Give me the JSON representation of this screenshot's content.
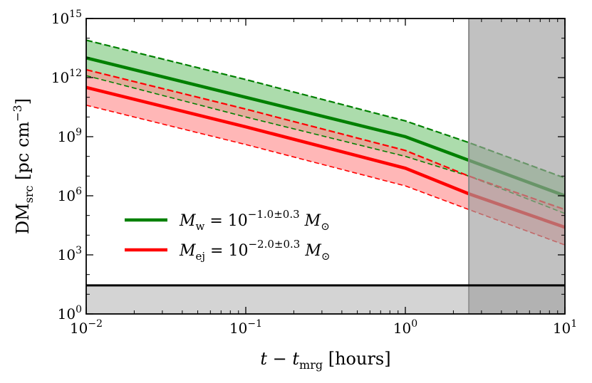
{
  "chart_data": {
    "type": "line",
    "title": "",
    "xlabel": "t − t_mrg [hours]",
    "ylabel": "DM_src [pc cm^−3]",
    "xscale": "log",
    "yscale": "log",
    "xlim": [
      0.01,
      10
    ],
    "ylim_log10": [
      0,
      15
    ],
    "x_ticks": [
      {
        "value": 0.01,
        "base": "10",
        "exp": "−2"
      },
      {
        "value": 0.1,
        "base": "10",
        "exp": "−1"
      },
      {
        "value": 1,
        "base": "10",
        "exp": "0"
      },
      {
        "value": 10,
        "base": "10",
        "exp": "1"
      }
    ],
    "y_ticks": [
      {
        "log10": 0,
        "base": "10",
        "exp": "0"
      },
      {
        "log10": 3,
        "base": "10",
        "exp": "3"
      },
      {
        "log10": 6,
        "base": "10",
        "exp": "6"
      },
      {
        "log10": 9,
        "base": "10",
        "exp": "9"
      },
      {
        "log10": 12,
        "base": "10",
        "exp": "12"
      },
      {
        "log10": 15,
        "base": "10",
        "exp": "15"
      }
    ],
    "series": [
      {
        "name": "M_w = 10^(−1.0±0.3) M_⊙",
        "color": "#008000",
        "band_color": "#7fc97f",
        "x": [
          0.01,
          0.1,
          1,
          2.5,
          10
        ],
        "log10_y_center": [
          13.0,
          11.0,
          9.0,
          7.8,
          6.0
        ],
        "log10_y_upper": [
          13.9,
          11.9,
          9.8,
          8.7,
          6.9
        ],
        "log10_y_lower": [
          12.1,
          10.0,
          8.0,
          7.0,
          5.1
        ]
      },
      {
        "name": "M_ej = 10^(−2.0±0.3) M_⊙",
        "color": "#ff0000",
        "band_color": "#ff9090",
        "x": [
          0.01,
          0.1,
          1,
          2.5,
          10
        ],
        "log10_y_center": [
          11.5,
          9.5,
          7.4,
          6.1,
          4.4
        ],
        "log10_y_upper": [
          12.4,
          10.4,
          8.3,
          7.0,
          5.3
        ],
        "log10_y_lower": [
          10.6,
          8.6,
          6.5,
          5.3,
          3.5
        ]
      }
    ],
    "hline": {
      "log10_y": 1.45,
      "color": "#000000"
    },
    "shaded_regions": [
      {
        "type": "x_range",
        "x_from": 2.5,
        "x_to": 10,
        "color": "#a0a0a0",
        "opacity": 0.65
      },
      {
        "type": "y_range",
        "log10_from": 0,
        "log10_to": 1.45,
        "color": "#a0a0a0",
        "opacity": 0.45
      }
    ],
    "legend": {
      "position": "lower-left",
      "entries": [
        {
          "symbol": "M",
          "sub": "w",
          "rhs": "= 10",
          "sup": "−1.0±0.3",
          "unit": "M",
          "unit_sub": "⊙",
          "color": "#008000"
        },
        {
          "symbol": "M",
          "sub": "ej",
          "rhs": "= 10",
          "sup": "−2.0±0.3",
          "unit": "M",
          "unit_sub": "⊙",
          "color": "#ff0000"
        }
      ]
    },
    "axis_label_parts": {
      "x": {
        "t1": "t − t",
        "sub": "mrg",
        "t2": " [hours]"
      },
      "y": {
        "t1": "DM",
        "sub": "src",
        "t2": " [pc cm",
        "sup": "−3",
        "t3": "]"
      }
    }
  }
}
